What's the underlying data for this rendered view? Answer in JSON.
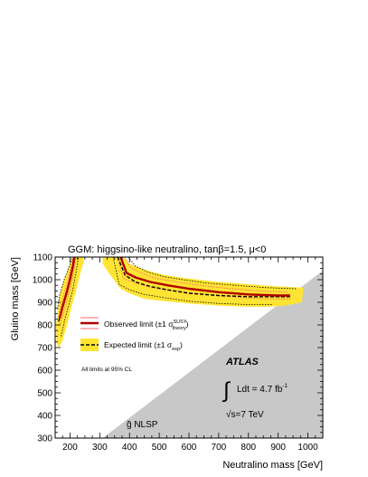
{
  "chart_data": {
    "type": "line",
    "title": "GGM: higgsino-like neutralino, tanβ=1.5,  μ<0",
    "xlabel": "Neutralino mass [GeV]",
    "ylabel": "Gluino mass [GeV]",
    "xlim": [
      150,
      1050
    ],
    "ylim": [
      300,
      1100
    ],
    "x_ticks": [
      200,
      300,
      400,
      500,
      600,
      700,
      800,
      900,
      1000
    ],
    "y_ticks": [
      300,
      400,
      500,
      600,
      700,
      800,
      900,
      1000,
      1100
    ],
    "grid": false,
    "legend_placement": "left",
    "legend": {
      "observed": "Observed limit (±1 σ",
      "observed_sup": "SUSY",
      "observed_sub": "theory",
      "observed_close": ")",
      "expected": "Expected limit (±1 σ",
      "expected_sub": "exp",
      "expected_close": ")",
      "note": "All limits at 95% CL"
    },
    "annotations": {
      "experiment": "ATLAS",
      "integral": "∫",
      "lumi": "Ldt = 4.7 fb",
      "lumi_sup": "-1",
      "sqrt_sign": "√",
      "energy": "s=7 TeV",
      "nlsp_region": "g̃ NLSP"
    },
    "colors": {
      "observed": "#b00000",
      "observed_band": "#ff6a6a",
      "expected": "#000000",
      "expected_band": "#ffe433",
      "nlsp_region": "#c8c8c8"
    },
    "series": [
      {
        "name": "Observed limit",
        "segments": [
          {
            "x": [
              165,
              175,
              190,
              200,
              210,
              215
            ],
            "y": [
              830,
              880,
              950,
              1000,
              1060,
              1100
            ]
          },
          {
            "x": [
              370,
              390,
              420,
              470,
              530,
              600,
              700,
              800,
              900,
              940
            ],
            "y": [
              1100,
              1030,
              1010,
              990,
              975,
              960,
              945,
              935,
              930,
              930
            ]
          }
        ]
      },
      {
        "name": "Observed limit ±1 σ theory (upper)",
        "segments": [
          {
            "x": [
              163,
              173,
              188,
              198,
              207,
              211
            ],
            "y": [
              855,
              905,
              975,
              1025,
              1080,
              1100
            ]
          },
          {
            "x": [
              385,
              405,
              440,
              490,
              560,
              640,
              740,
              840,
              930
            ],
            "y": [
              1100,
              1050,
              1030,
              1005,
              990,
              975,
              960,
              950,
              945
            ]
          }
        ]
      },
      {
        "name": "Observed limit ±1 σ theory (lower)",
        "segments": [
          {
            "x": [
              168,
              178,
              193,
              203,
              213,
              218
            ],
            "y": [
              805,
              855,
              925,
              975,
              1040,
              1100
            ]
          },
          {
            "x": [
              360,
              380,
              410,
              460,
              520,
              590,
              690,
              790,
              890,
              945
            ],
            "y": [
              1100,
              1005,
              990,
              970,
              955,
              945,
              930,
              920,
              915,
              915
            ]
          }
        ]
      },
      {
        "name": "Expected limit",
        "segments": [
          {
            "x": [
              162,
              172,
              187,
              197,
              208,
              213
            ],
            "y": [
              815,
              870,
              940,
              990,
              1055,
              1100
            ]
          },
          {
            "x": [
              360,
              385,
              420,
              470,
              530,
              600,
              700,
              800,
              900,
              940
            ],
            "y": [
              1100,
              1020,
              990,
              970,
              955,
              940,
              930,
              925,
              925,
              925
            ]
          }
        ]
      },
      {
        "name": "Expected limit ±1 σ exp (upper)",
        "segments": [
          {
            "x": [
              158,
              165,
              180,
              195,
              205,
              210
            ],
            "y": [
              870,
              930,
              1000,
              1050,
              1090,
              1100
            ]
          },
          {
            "x": [
              395,
              420,
              460,
              510,
              580,
              660,
              760,
              860,
              960
            ],
            "y": [
              1100,
              1060,
              1035,
              1015,
              1000,
              985,
              975,
              965,
              960
            ]
          }
        ]
      },
      {
        "name": "Expected limit ±1 σ exp (lower)",
        "segments": [
          {
            "x": [
              170,
              182,
              198,
              210,
              220,
              228
            ],
            "y": [
              750,
              820,
              900,
              960,
              1030,
              1100
            ]
          },
          {
            "x": [
              345,
              365,
              400,
              450,
              520,
              600,
              700,
              800,
              880
            ],
            "y": [
              1100,
              980,
              955,
              935,
              920,
              905,
              895,
              890,
              890
            ]
          }
        ]
      }
    ],
    "bands": [
      {
        "name": "Expected limit ±1 σ exp band",
        "polygons": [
          {
            "x": [
              153,
              165,
              180,
              195,
              205,
              215,
              245,
              246,
              235,
              220,
              205,
              190,
              175,
              162,
              155
            ],
            "y": [
              800,
              930,
              1000,
              1050,
              1090,
              1100,
              1100,
              1080,
              1030,
              950,
              880,
              800,
              730,
              700,
              720
            ]
          },
          {
            "x": [
              310,
              340,
              360,
              380,
              400,
              460,
              520,
              600,
              700,
              800,
              900,
              985,
              980,
              920,
              860,
              800,
              700,
              600,
              520,
              450,
              400,
              370,
              330,
              310
            ],
            "y": [
              1100,
              1100,
              1100,
              1100,
              1070,
              1040,
              1020,
              1005,
              990,
              980,
              970,
              965,
              900,
              885,
              880,
              880,
              885,
              895,
              905,
              915,
              940,
              960,
              1030,
              1070
            ]
          }
        ]
      }
    ],
    "regions": [
      {
        "name": "NLSP excluded region",
        "x": [
          310,
          1050,
          1050
        ],
        "y": [
          300,
          1040,
          300
        ]
      }
    ]
  }
}
